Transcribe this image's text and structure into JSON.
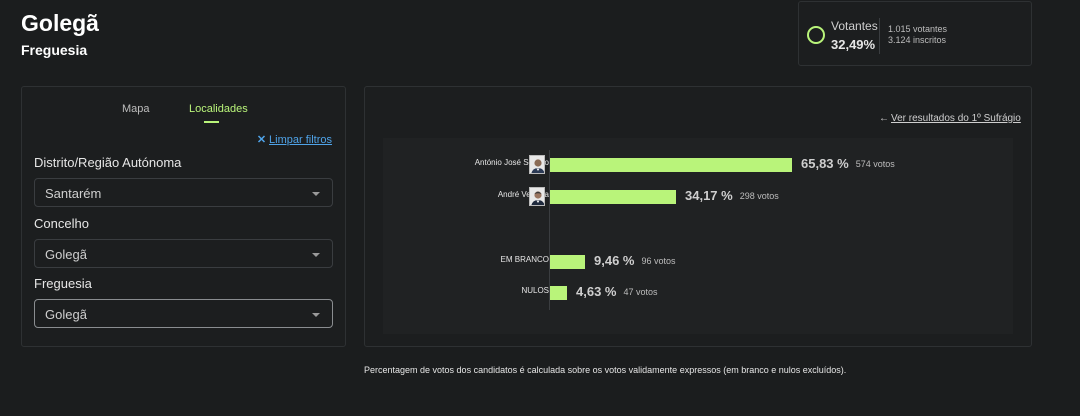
{
  "header": {
    "title": "Golegã",
    "subtitle": "Freguesia"
  },
  "turnout": {
    "label": "Votantes",
    "percent": "32,49%",
    "voters": "1.015 votantes",
    "registered": "3.124 inscritos",
    "ring_color": "#b9f47a"
  },
  "tabs": [
    {
      "label": "Mapa",
      "active": false
    },
    {
      "label": "Localidades",
      "active": true
    }
  ],
  "filters": {
    "clear_icon": "close-icon",
    "clear_label": "Limpar filtros",
    "district": {
      "label": "Distrito/Região Autónoma",
      "value": "Santarém"
    },
    "municipality": {
      "label": "Concelho",
      "value": "Golegã"
    },
    "parish": {
      "label": "Freguesia",
      "value": "Golegã"
    }
  },
  "results": {
    "back_icon": "arrow-left-icon",
    "back_link": "Ver resultados do 1º Sufrágio",
    "rows": [
      {
        "name": "António José Seguro",
        "percent": 65.83,
        "percent_label": "65,83 %",
        "votes_label": "574 votos",
        "has_photo": true
      },
      {
        "name": "André Ventura",
        "percent": 34.17,
        "percent_label": "34,17 %",
        "votes_label": "298 votos",
        "has_photo": true
      },
      {
        "name": "EM BRANCO",
        "percent": 9.46,
        "percent_label": "9,46 %",
        "votes_label": "96 votos",
        "has_photo": false
      },
      {
        "name": "NULOS",
        "percent": 4.63,
        "percent_label": "4,63 %",
        "votes_label": "47 votos",
        "has_photo": false
      }
    ],
    "bar_color": "#b9f47a"
  },
  "footnote": "Percentagem de votos dos candidatos é calculada sobre os votos validamente expressos (em branco e nulos excluídos)."
}
